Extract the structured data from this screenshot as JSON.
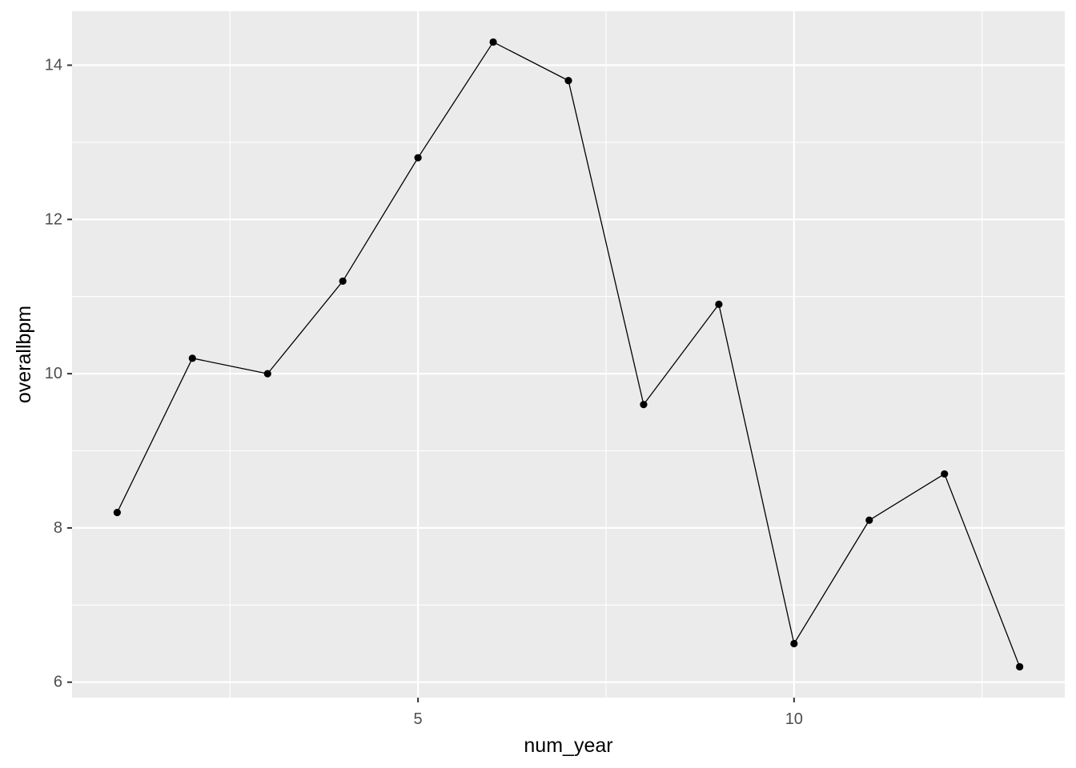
{
  "chart_data": {
    "type": "line",
    "title": "",
    "xlabel": "num_year",
    "ylabel": "overallbpm",
    "x": [
      1,
      2,
      3,
      4,
      5,
      6,
      7,
      8,
      9,
      10,
      11,
      12,
      13
    ],
    "series": [
      {
        "values": [
          8.2,
          10.2,
          10.0,
          11.2,
          12.8,
          14.3,
          13.8,
          9.6,
          10.9,
          6.5,
          8.1,
          8.7,
          6.2
        ]
      }
    ],
    "xlim": [
      0.4,
      13.6
    ],
    "ylim": [
      5.8,
      14.7
    ],
    "x_ticks": [
      5,
      10
    ],
    "x_tick_labels": [
      "5",
      "10"
    ],
    "x_minor_ticks": [
      2.5,
      7.5,
      12.5
    ],
    "y_ticks": [
      6,
      8,
      10,
      12,
      14
    ],
    "y_tick_labels": [
      "6",
      "8",
      "10",
      "12",
      "14"
    ],
    "y_minor_ticks": [
      7,
      9,
      11,
      13
    ],
    "grid": true,
    "legend": "none",
    "colors": {
      "panel_background": "#ebebeb",
      "grid": "#ffffff",
      "line": "#000000",
      "point": "#000000",
      "tick_label": "#4d4d4d",
      "axis_title": "#000000"
    }
  }
}
